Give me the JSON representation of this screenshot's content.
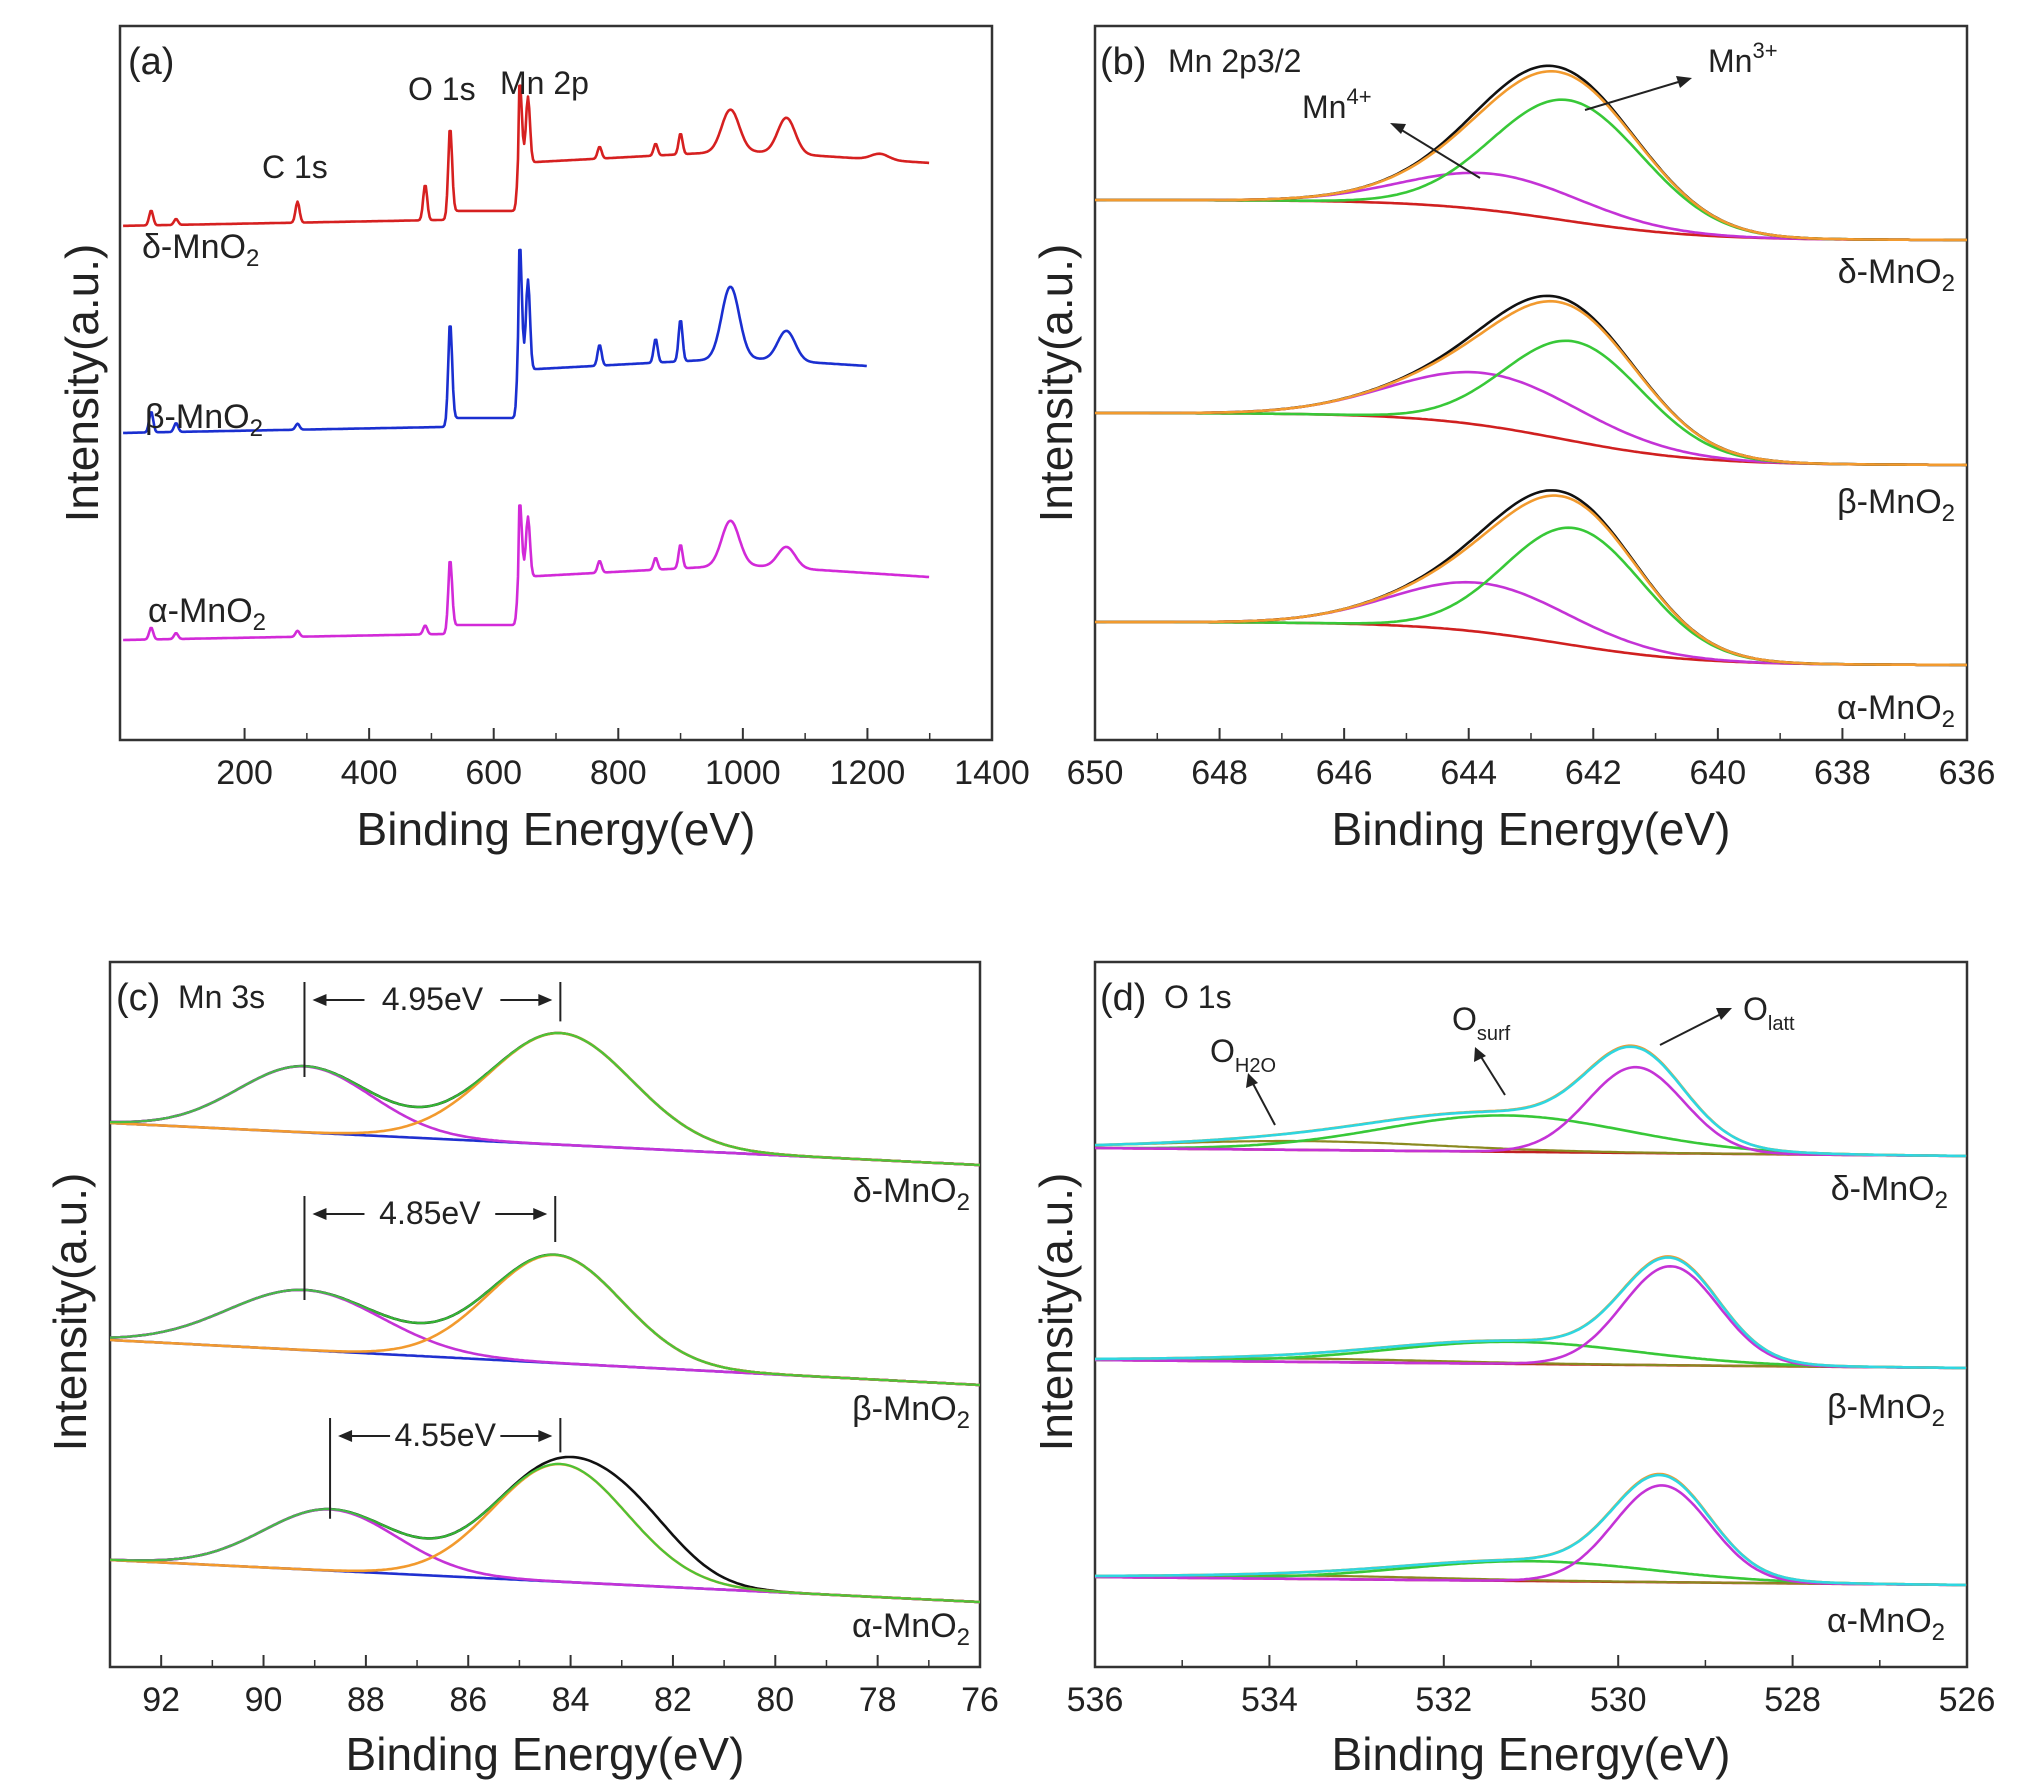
{
  "chart_data": [
    {
      "panel": "(a)",
      "type": "line",
      "title": "",
      "xlabel": "Binding Energy(eV)",
      "ylabel": "Intensity(a.u.)",
      "xlim": [
        0,
        1400
      ],
      "xticks": [
        200,
        400,
        600,
        800,
        1000,
        1200,
        1400
      ],
      "annotations": [
        {
          "text": "C 1s",
          "x": 285
        },
        {
          "text": "O 1s",
          "x": 530
        },
        {
          "text": "Mn 2p",
          "x": 642
        }
      ],
      "series": [
        {
          "name": "δ-MnO2",
          "color": "#d62020",
          "offset": 0.72,
          "xmax": 1300,
          "peaks": [
            [
              50,
              0.05
            ],
            [
              90,
              0.02
            ],
            [
              285,
              0.07
            ],
            [
              490,
              0.12
            ],
            [
              530,
              0.28
            ],
            [
              642,
              0.27
            ],
            [
              655,
              0.22
            ],
            [
              770,
              0.04
            ],
            [
              860,
              0.04
            ],
            [
              900,
              0.07
            ],
            [
              980,
              0.14
            ],
            [
              1070,
              0.12
            ],
            [
              1220,
              0.02
            ]
          ]
        },
        {
          "name": "β-MnO2",
          "color": "#1a2fd0",
          "offset": 0.43,
          "xmax": 1200,
          "peaks": [
            [
              50,
              0.07
            ],
            [
              90,
              0.03
            ],
            [
              285,
              0.02
            ],
            [
              530,
              0.32
            ],
            [
              642,
              0.42
            ],
            [
              655,
              0.3
            ],
            [
              770,
              0.07
            ],
            [
              860,
              0.08
            ],
            [
              900,
              0.14
            ],
            [
              980,
              0.24
            ],
            [
              1070,
              0.1
            ]
          ]
        },
        {
          "name": "α-MnO2",
          "color": "#d22ad8",
          "offset": 0.14,
          "xmax": 1300,
          "peaks": [
            [
              50,
              0.04
            ],
            [
              90,
              0.02
            ],
            [
              285,
              0.02
            ],
            [
              490,
              0.03
            ],
            [
              530,
              0.22
            ],
            [
              642,
              0.25
            ],
            [
              655,
              0.2
            ],
            [
              770,
              0.04
            ],
            [
              860,
              0.04
            ],
            [
              900,
              0.08
            ],
            [
              980,
              0.15
            ],
            [
              1070,
              0.07
            ]
          ]
        }
      ],
      "sample_labels": [
        "δ-MnO2",
        "β-MnO2",
        "α-MnO2"
      ]
    },
    {
      "panel": "(b)",
      "type": "line",
      "title": "Mn 2p3/2",
      "xlabel": "Binding Energy(eV)",
      "ylabel": "Intensity(a.u.)",
      "xlim": [
        650,
        636
      ],
      "xticks": [
        650,
        648,
        646,
        644,
        642,
        640,
        638,
        636
      ],
      "annotations": [
        {
          "text": "Mn",
          "sup": "4+"
        },
        {
          "text": "Mn",
          "sup": "3+"
        }
      ],
      "component_colors": {
        "background": "#d02020",
        "mn4": "#c433d6",
        "mn3": "#38c838",
        "envelope": "#111111",
        "fit": "#f29a2e"
      },
      "series": [
        {
          "name": "δ-MnO2",
          "offset": 0.0,
          "mn4": {
            "center": 643.6,
            "height": 0.21,
            "width": 1.4
          },
          "mn3": {
            "center": 642.4,
            "height": 0.69,
            "width": 1.2
          }
        },
        {
          "name": "β-MnO2",
          "offset": 0.0,
          "mn4": {
            "center": 643.7,
            "height": 0.3,
            "width": 1.5
          },
          "mn3": {
            "center": 642.3,
            "height": 0.57,
            "width": 1.1
          }
        },
        {
          "name": "α-MnO2",
          "offset": 0.0,
          "mn4": {
            "center": 643.8,
            "height": 0.28,
            "width": 1.4
          },
          "mn3": {
            "center": 642.3,
            "height": 0.67,
            "width": 1.1
          }
        }
      ],
      "sample_labels": [
        "δ-MnO2",
        "β-MnO2",
        "α-MnO2"
      ]
    },
    {
      "panel": "(c)",
      "type": "line",
      "title": "Mn 3s",
      "xlabel": "Binding Energy(eV)",
      "ylabel": "Intensity(a.u.)",
      "xlim": [
        93,
        76
      ],
      "xticks": [
        92,
        90,
        88,
        86,
        84,
        82,
        80,
        78,
        76
      ],
      "component_colors": {
        "background": "#2030d0",
        "peak1": "#c433d6",
        "peak2": "#f29a2e",
        "fit": "#38c838",
        "envelope": "#111111"
      },
      "series": [
        {
          "name": "δ-MnO2",
          "splitting": "4.95eV",
          "peak1": {
            "center": 89.2,
            "height": 0.55,
            "width": 1.3
          },
          "peak2": {
            "center": 84.2,
            "height": 0.93,
            "width": 1.4
          }
        },
        {
          "name": "β-MnO2",
          "splitting": "4.85eV",
          "peak1": {
            "center": 89.2,
            "height": 0.5,
            "width": 1.5
          },
          "peak2": {
            "center": 84.3,
            "height": 0.9,
            "width": 1.3
          }
        },
        {
          "name": "α-MnO2",
          "splitting": "4.55eV",
          "peak1": {
            "center": 88.7,
            "height": 0.51,
            "width": 1.3
          },
          "peak2": {
            "center": 84.2,
            "height": 0.98,
            "width": 1.3
          }
        }
      ],
      "sample_labels": [
        "δ-MnO2",
        "β-MnO2",
        "α-MnO2"
      ]
    },
    {
      "panel": "(d)",
      "type": "line",
      "title": "O 1s",
      "xlabel": "Binding Energy(eV)",
      "ylabel": "Intensity(a.u.)",
      "xlim": [
        536,
        526
      ],
      "xticks": [
        536,
        534,
        532,
        530,
        528,
        526
      ],
      "annotations": [
        {
          "text": "O",
          "sub": "H2O"
        },
        {
          "text": "O",
          "sub": "surf"
        },
        {
          "text": "O",
          "sub": "latt"
        }
      ],
      "component_colors": {
        "background": "#c02020",
        "h2o": "#8a8a20",
        "surf": "#38c838",
        "latt": "#c433d6",
        "fit": "#f29a2e",
        "envelope": "#2fd6e0"
      },
      "series": [
        {
          "name": "δ-MnO2",
          "h2o": {
            "center": 533.6,
            "height": 0.08
          },
          "surf": {
            "center": 531.3,
            "height": 0.33
          },
          "latt": {
            "center": 529.8,
            "height": 0.78
          }
        },
        {
          "name": "β-MnO2",
          "h2o": {
            "center": 533.6,
            "height": 0.03
          },
          "surf": {
            "center": 531.2,
            "height": 0.2
          },
          "latt": {
            "center": 529.4,
            "height": 0.9
          }
        },
        {
          "name": "α-MnO2",
          "h2o": {
            "center": 533.6,
            "height": 0.03
          },
          "surf": {
            "center": 531.0,
            "height": 0.18
          },
          "latt": {
            "center": 529.5,
            "height": 0.88
          }
        }
      ],
      "sample_labels": [
        "δ-MnO2",
        "β-MnO2",
        "α-MnO2"
      ]
    }
  ]
}
